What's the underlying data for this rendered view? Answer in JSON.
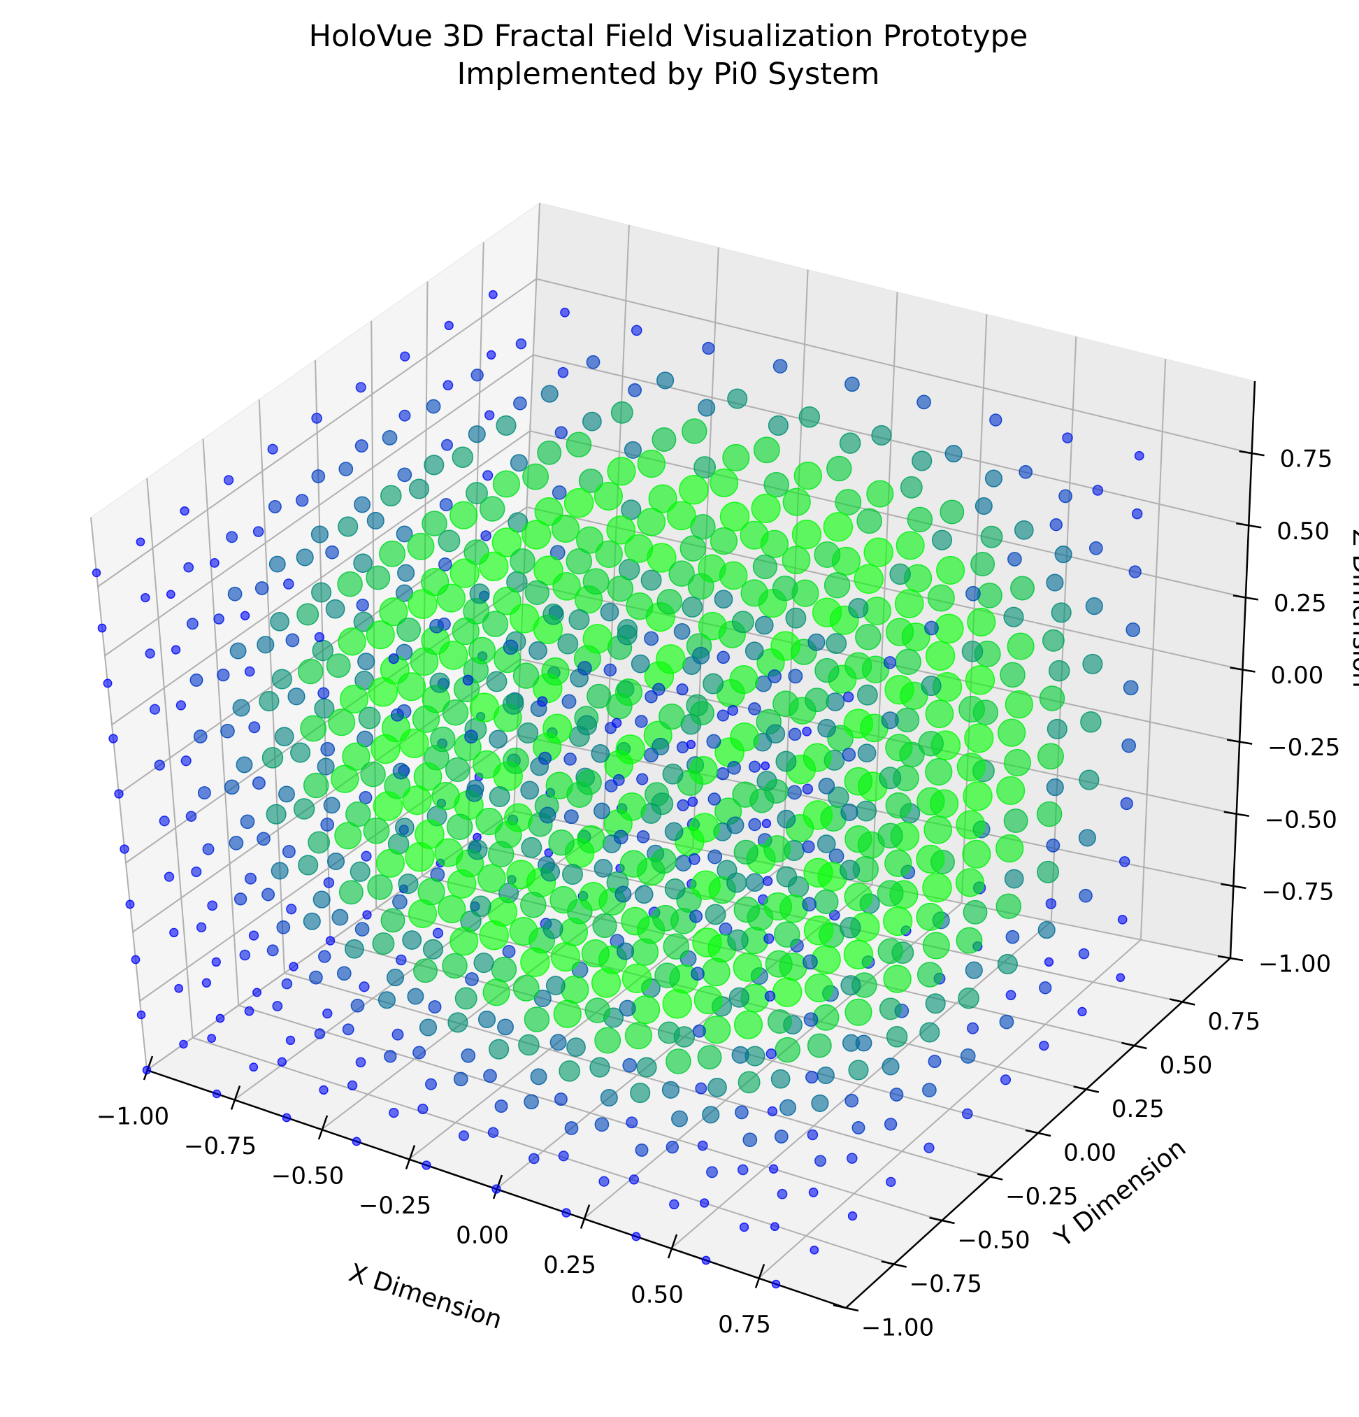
{
  "chart_data": {
    "type": "scatter",
    "title": "HoloVue 3D Fractal Field Visualization Prototype",
    "subtitle": "Implemented by Pi0 System",
    "xlabel": "X Dimension",
    "ylabel": "Y Dimension",
    "zlabel": "Z Dimension",
    "x_ticks": [
      "−1.00",
      "−0.75",
      "−0.50",
      "−0.25",
      "0.00",
      "0.25",
      "0.50",
      "0.75"
    ],
    "y_ticks": [
      "−1.00",
      "−0.75",
      "−0.50",
      "−0.25",
      "0.00",
      "0.25",
      "0.50",
      "0.75"
    ],
    "z_ticks": [
      "−1.00",
      "−0.75",
      "−0.50",
      "−0.25",
      "0.00",
      "0.25",
      "0.50",
      "0.75"
    ],
    "xlim": [
      -1.0,
      1.0
    ],
    "ylim": [
      -1.0,
      1.0
    ],
    "zlim": [
      -1.0,
      1.0
    ],
    "grid": true,
    "points": {
      "grid_steps": 10,
      "x_range": [
        -1.0,
        0.8
      ],
      "y_range": [
        -1.0,
        0.8
      ],
      "z_range": [
        -1.0,
        0.8
      ],
      "size_encodes": "field magnitude (larger = stronger)",
      "color_low": "#0000ff",
      "color_high": "#00ff00",
      "shell_peak_radius": 0.75,
      "alpha": 0.6
    },
    "pane_color": "#f2f2f2",
    "grid_color": "#b0b0b0"
  }
}
